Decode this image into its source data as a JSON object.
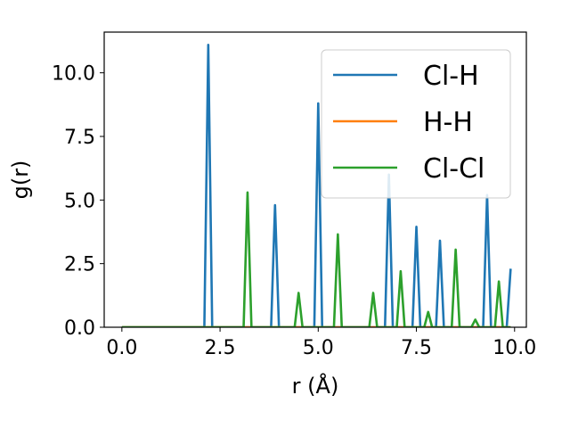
{
  "chart_data": {
    "type": "line",
    "xlabel": "r (Å)",
    "ylabel": "g(r)",
    "xlim": [
      -0.45,
      10.3
    ],
    "ylim": [
      0,
      11.6
    ],
    "xticks": [
      0.0,
      2.5,
      5.0,
      7.5,
      10.0
    ],
    "xtick_labels": [
      "0.0",
      "2.5",
      "5.0",
      "7.5",
      "10.0"
    ],
    "yticks": [
      0.0,
      2.5,
      5.0,
      7.5,
      10.0
    ],
    "ytick_labels": [
      "0.0",
      "2.5",
      "5.0",
      "7.5",
      "10.0"
    ],
    "grid": false,
    "legend_position": "top-right",
    "series": [
      {
        "name": "Cl-H",
        "color": "#1f77b4",
        "x": [
          0.0,
          2.1,
          2.2,
          2.3,
          3.8,
          3.9,
          4.0,
          4.9,
          5.0,
          5.1,
          6.7,
          6.8,
          6.9,
          7.4,
          7.5,
          7.6,
          8.0,
          8.1,
          8.2,
          9.2,
          9.3,
          9.4,
          9.8,
          9.9
        ],
        "y": [
          0.0,
          0.0,
          11.1,
          0.0,
          0.0,
          4.8,
          0.0,
          0.0,
          8.8,
          0.0,
          0.0,
          6.0,
          0.0,
          0.0,
          3.95,
          0.0,
          0.0,
          3.4,
          0.0,
          0.0,
          5.2,
          0.0,
          0.0,
          2.3
        ]
      },
      {
        "name": "H-H",
        "color": "#ff7f0e",
        "x": [
          0.0,
          9.9
        ],
        "y": [
          0.0,
          0.0
        ]
      },
      {
        "name": "Cl-Cl",
        "color": "#2ca02c",
        "x": [
          0.0,
          3.1,
          3.2,
          3.3,
          4.4,
          4.5,
          4.6,
          5.4,
          5.5,
          5.6,
          6.3,
          6.4,
          6.5,
          7.0,
          7.1,
          7.2,
          7.7,
          7.8,
          7.9,
          8.4,
          8.5,
          8.6,
          8.9,
          9.0,
          9.1,
          9.5,
          9.6,
          9.7,
          9.9
        ],
        "y": [
          0.0,
          0.0,
          5.3,
          0.0,
          0.0,
          1.35,
          0.0,
          0.0,
          3.65,
          0.0,
          0.0,
          1.35,
          0.0,
          0.0,
          2.2,
          0.0,
          0.0,
          0.6,
          0.0,
          0.0,
          3.05,
          0.0,
          0.0,
          0.3,
          0.0,
          0.0,
          1.8,
          0.0,
          0.0
        ]
      }
    ]
  }
}
